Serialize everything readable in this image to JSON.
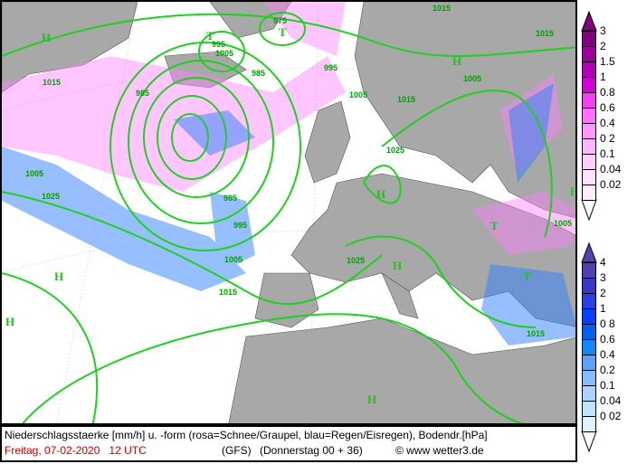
{
  "map": {
    "isobar_color": "#20d020",
    "land_color": "#a8a8a8",
    "snow_color": "#ff80ff",
    "rain_color": "#3080ff",
    "labels": [
      "1015",
      "985",
      "995",
      "1005",
      "975",
      "985",
      "1015",
      "1005",
      "1025",
      "1005",
      "1015",
      "1025",
      "985",
      "995",
      "1005",
      "1015",
      "1025",
      "1005",
      "1015",
      "1005",
      "1015",
      "995"
    ],
    "pressure_systems": [
      "H",
      "T",
      "T",
      "H",
      "H",
      "H",
      "H",
      "T",
      "H",
      "T",
      "H",
      "H"
    ]
  },
  "legend": {
    "snow": {
      "labels": [
        "3",
        "2",
        "1.5",
        "1",
        "0.8",
        "0.6",
        "0.4",
        "0 2",
        "0.1",
        "0.04",
        "0.02"
      ],
      "colors": [
        "#800080",
        "#980098",
        "#b000b8",
        "#d000d8",
        "#f040f0",
        "#ff70ff",
        "#ff98ff",
        "#ffb8ff",
        "#ffd0ff",
        "#ffe0ff",
        "#ffeeff"
      ]
    },
    "rain": {
      "labels": [
        "4",
        "3",
        "2",
        "1",
        "0 8",
        "0.6",
        "0.4",
        "0.2",
        "0.1",
        "0.04",
        "0 02"
      ],
      "colors": [
        "#5040b0",
        "#3838c8",
        "#2840e0",
        "#0840ff",
        "#0060f0",
        "#1088f8",
        "#60a0f8",
        "#88bcff",
        "#a8d4ff",
        "#c0e4ff",
        "#dcf4ff"
      ]
    }
  },
  "footer": {
    "description": "Niederschlagsstaerke [mm/h] u. -form (rosa=Schnee/Graupel, blau=Regen/Eisregen), Bodendr.[hPa]",
    "date": "Freitag, 07-02-2020   12 UTC",
    "model": "(GFS)",
    "run": "(Donnerstag 00 + 36)",
    "copyright": "© www wetter3.de"
  }
}
